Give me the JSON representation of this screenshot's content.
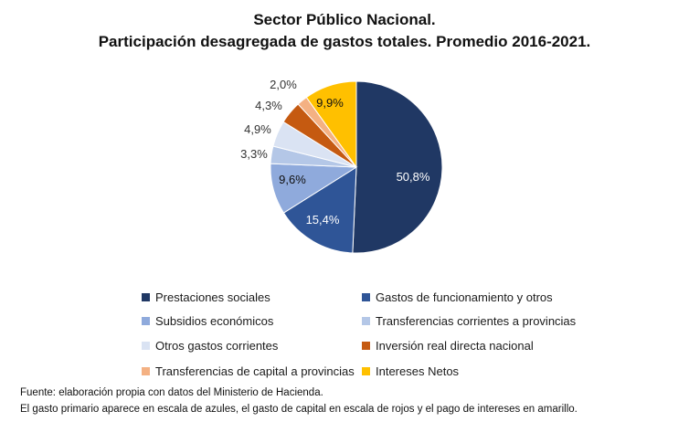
{
  "chart_data": {
    "type": "pie",
    "title": "Sector Público Nacional.",
    "subtitle": "Participación desagregada de gastos totales. Promedio 2016-2021.",
    "slices": [
      {
        "name": "Prestaciones sociales",
        "value": 50.8,
        "label": "50,8%",
        "color": "#203864"
      },
      {
        "name": "Gastos de funcionamiento y otros",
        "value": 15.4,
        "label": "15,4%",
        "color": "#2F5597"
      },
      {
        "name": "Subsidios económicos",
        "value": 9.6,
        "label": "9,6%",
        "color": "#8FAADC"
      },
      {
        "name": "Transferencias corrientes a provincias",
        "value": 3.3,
        "label": "3,3%",
        "color": "#B4C7E7"
      },
      {
        "name": "Otros gastos corrientes",
        "value": 4.9,
        "label": "4,9%",
        "color": "#DAE3F3"
      },
      {
        "name": "Inversión real directa nacional",
        "value": 4.3,
        "label": "4,3%",
        "color": "#C55A11"
      },
      {
        "name": "Transferencias de capital a provincias",
        "value": 2.0,
        "label": "2,0%",
        "color": "#F4B183"
      },
      {
        "name": "Intereses Netos",
        "value": 9.9,
        "label": "9,9%",
        "color": "#FFC000"
      }
    ]
  },
  "footer": {
    "source": "Fuente: elaboración propia con datos del Ministerio de Hacienda.",
    "note": "El gasto primario aparece en escala de azules, el gasto de capital en escala de rojos y el pago de intereses en amarillo."
  }
}
